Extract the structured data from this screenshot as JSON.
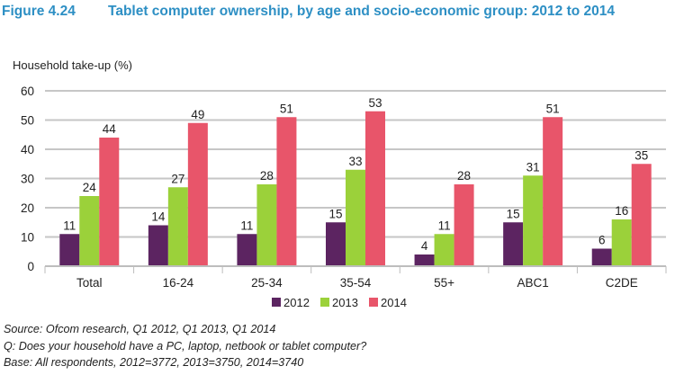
{
  "title": {
    "figure_number": "Figure 4.24",
    "text": "Tablet computer ownership, by age and socio-economic group: 2012 to 2014"
  },
  "chart_data": {
    "type": "bar",
    "ylabel": "Household take-up (%)",
    "xlabel": "",
    "ylim": [
      0,
      60
    ],
    "yticks": [
      0,
      10,
      20,
      30,
      40,
      50,
      60
    ],
    "grid": true,
    "legend_position": "bottom-center",
    "categories": [
      "Total",
      "16-24",
      "25-34",
      "35-54",
      "55+",
      "ABC1",
      "C2DE"
    ],
    "series": [
      {
        "name": "2012",
        "color": "#5c2461",
        "values": [
          11,
          14,
          11,
          15,
          4,
          15,
          6
        ]
      },
      {
        "name": "2013",
        "color": "#9bd13a",
        "values": [
          24,
          27,
          28,
          33,
          11,
          31,
          16
        ]
      },
      {
        "name": "2014",
        "color": "#e8556a",
        "values": [
          44,
          49,
          51,
          53,
          28,
          51,
          35
        ]
      }
    ]
  },
  "footnotes": {
    "source": "Source: Ofcom research, Q1 2012, Q1 2013, Q1 2014",
    "question": "Q: Does your household have a PC, laptop, netbook or tablet computer?",
    "base": "Base: All respondents, 2012=3772, 2013=3750, 2014=3740"
  }
}
